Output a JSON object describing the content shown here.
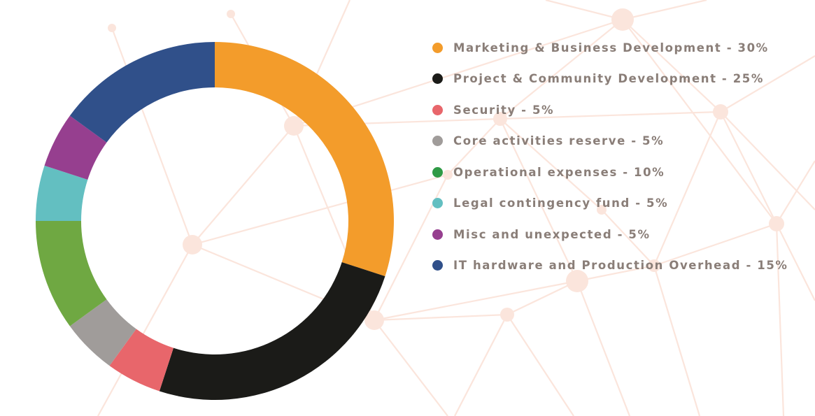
{
  "chart_data": {
    "type": "pie",
    "variant": "donut",
    "title": "",
    "legend_placement": "right",
    "series": [
      {
        "name": "Marketing & Business Development - 30%",
        "value": 30,
        "color": "#f39c2b"
      },
      {
        "name": "Project & Community Development - 25%",
        "value": 25,
        "color": "#1b1b18"
      },
      {
        "name": "Security - 5%",
        "value": 5,
        "color": "#e8666b"
      },
      {
        "name": "Core activities reserve - 5%",
        "value": 5,
        "color": "#a09c9a"
      },
      {
        "name": "Operational expenses - 10%",
        "value": 10,
        "color": "#6fa842"
      },
      {
        "name": "Legal contingency fund - 5%",
        "value": 5,
        "color": "#63bfc1"
      },
      {
        "name": "Misc and unexpected - 5%",
        "value": 5,
        "color": "#963f8f"
      },
      {
        "name": "IT hardware and Production Overhead - 15%",
        "value": 15,
        "color": "#30508a"
      }
    ],
    "legend_dot_colors": [
      "#f39c2b",
      "#1b1b18",
      "#e8666b",
      "#a09c9a",
      "#2f9a45",
      "#63bfc1",
      "#963f8f",
      "#30508a"
    ]
  },
  "background": {
    "pattern": "network-lines",
    "line_color": "#fbe5dc"
  }
}
